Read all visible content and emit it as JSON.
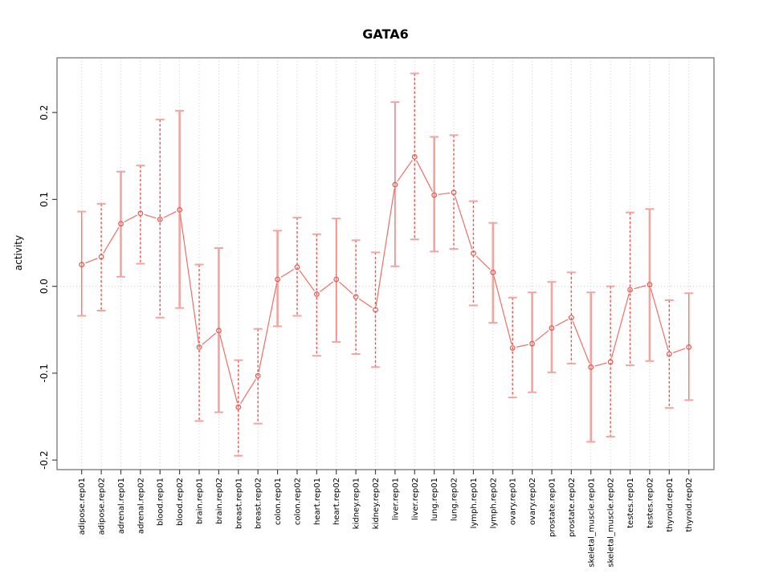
{
  "chart_data": {
    "type": "line",
    "title": "GATA6",
    "xlabel": "",
    "ylabel": "activity",
    "ylim": [
      -0.211,
      0.263
    ],
    "yticks": [
      -0.2,
      -0.1,
      0.0,
      0.1,
      0.2
    ],
    "ytick_labels": [
      "-0.2",
      "-0.1",
      "0.0",
      "0.1",
      "0.2"
    ],
    "grid": "vertical dotted gridline at every category; dotted horizontal line at y=0; full box frame",
    "legend": "none",
    "categories": [
      "adipose.rep01",
      "adipose.rep02",
      "adrenal.rep01",
      "adrenal.rep02",
      "blood.rep01",
      "blood.rep02",
      "brain.rep01",
      "brain.rep02",
      "breast.rep01",
      "breast.rep02",
      "colon.rep01",
      "colon.rep02",
      "heart.rep01",
      "heart.rep02",
      "kidney.rep01",
      "kidney.rep02",
      "liver.rep01",
      "liver.rep02",
      "lung.rep01",
      "lung.rep02",
      "lymph.rep01",
      "lymph.rep02",
      "ovary.rep01",
      "ovary.rep02",
      "prostate.rep01",
      "prostate.rep02",
      "skeletal_muscle.rep01",
      "skeletal_muscle.rep02",
      "testes.rep01",
      "testes.rep02",
      "thyroid.rep01",
      "thyroid.rep02"
    ],
    "series": [
      {
        "name": "activity",
        "marker": "open-circle",
        "values": [
          0.025,
          0.034,
          0.072,
          0.084,
          0.077,
          0.088,
          -0.07,
          -0.051,
          -0.139,
          -0.103,
          0.008,
          0.022,
          -0.009,
          0.008,
          -0.012,
          -0.027,
          0.117,
          0.149,
          0.105,
          0.108,
          0.038,
          0.016,
          -0.071,
          -0.066,
          -0.048,
          -0.036,
          -0.093,
          -0.087,
          -0.004,
          0.002,
          -0.078,
          -0.07
        ],
        "lower": [
          -0.034,
          -0.028,
          0.011,
          0.026,
          -0.036,
          -0.025,
          -0.155,
          -0.145,
          -0.195,
          -0.158,
          -0.046,
          -0.034,
          -0.08,
          -0.064,
          -0.078,
          -0.093,
          0.023,
          0.054,
          0.04,
          0.043,
          -0.022,
          -0.042,
          -0.128,
          -0.122,
          -0.099,
          -0.089,
          -0.179,
          -0.173,
          -0.091,
          -0.086,
          -0.14,
          -0.131
        ],
        "upper": [
          0.086,
          0.095,
          0.132,
          0.139,
          0.192,
          0.202,
          0.025,
          0.044,
          -0.085,
          -0.049,
          0.064,
          0.079,
          0.06,
          0.078,
          0.053,
          0.039,
          0.212,
          0.245,
          0.172,
          0.174,
          0.098,
          0.073,
          -0.013,
          -0.007,
          0.005,
          0.016,
          -0.007,
          0.0,
          0.085,
          0.089,
          -0.016,
          -0.008
        ],
        "bar_styles": [
          "solid-thin",
          "dashed",
          "solid-thick",
          "dashed",
          "dashed",
          "solid-thick",
          "dashed",
          "solid-thick",
          "dashed",
          "dashed",
          "solid-thick",
          "dashed",
          "dashed",
          "solid-thin",
          "dashed",
          "dashed",
          "solid-thin",
          "dashed",
          "solid-thick",
          "dashed",
          "dashed",
          "solid-thick",
          "dashed",
          "solid-thick",
          "solid-thick",
          "dashed",
          "solid-thick",
          "dashed",
          "dashed",
          "solid-thick",
          "dashed",
          "solid-thin"
        ]
      }
    ],
    "colors": {
      "point": "#e8554c",
      "connect_line": "#ee6e66",
      "bar_dashed": "#e8554c",
      "bar_solid_thick": "#f2a49e",
      "bar_solid_thin": "#ee7e77",
      "cap": "#f2a49e",
      "grid": "#cfcfcf",
      "frame": "#777777",
      "tick": "#444444",
      "text": "#000000"
    }
  }
}
